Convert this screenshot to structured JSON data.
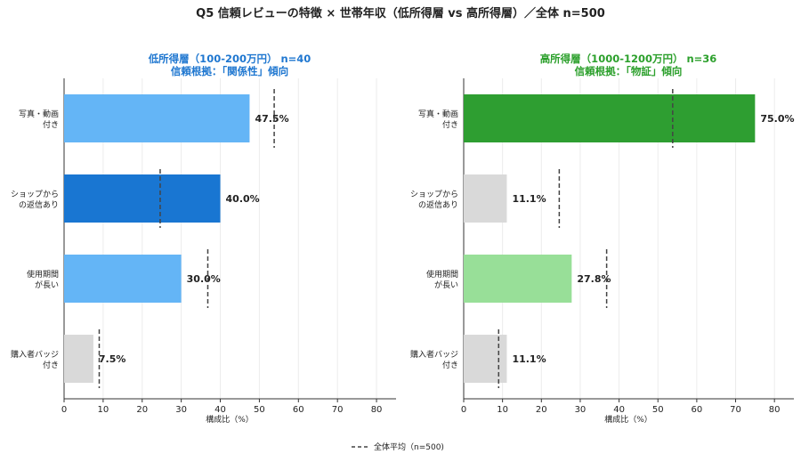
{
  "title": "Q5 信頼レビューの特徴 × 世帯年収（低所得層 vs 高所得層）／全体 n=500",
  "legend": {
    "label": "全体平均（n=500)"
  },
  "chart_data": [
    {
      "type": "bar",
      "orientation": "horizontal",
      "title": "低所得層（100-200万円） n=40",
      "subtitle": "信頼根拠：「関係性」傾向",
      "title_color": "#1f77d0",
      "xlabel": "構成比（%）",
      "xlim": [
        0,
        85
      ],
      "xticks": [
        0,
        10,
        20,
        30,
        40,
        50,
        60,
        70,
        80
      ],
      "grid": "vertical",
      "categories": [
        [
          "写真・動画",
          "付き"
        ],
        [
          "ショップから",
          "の返信あり"
        ],
        [
          "使用期間",
          "が長い"
        ],
        [
          "購入者バッジ",
          "付き"
        ]
      ],
      "values": [
        47.5,
        40.0,
        30.0,
        7.5
      ],
      "value_labels": [
        "47.5%",
        "40.0%",
        "30.0%",
        "7.5%"
      ],
      "bar_colors": [
        "#64b5f6",
        "#1976d2",
        "#64b5f6",
        "#d9d9d9"
      ],
      "overall_avg": [
        53.8,
        24.6,
        36.8,
        9.0
      ]
    },
    {
      "type": "bar",
      "orientation": "horizontal",
      "title": "高所得層（1000-1200万円） n=36",
      "subtitle": "信頼根拠：「物証」傾向",
      "title_color": "#2ca02c",
      "xlabel": "構成比（%）",
      "xlim": [
        0,
        85
      ],
      "xticks": [
        0,
        10,
        20,
        30,
        40,
        50,
        60,
        70,
        80
      ],
      "grid": "vertical",
      "categories": [
        [
          "写真・動画",
          "付き"
        ],
        [
          "ショップから",
          "の返信あり"
        ],
        [
          "使用期間",
          "が長い"
        ],
        [
          "購入者バッジ",
          "付き"
        ]
      ],
      "values": [
        75.0,
        11.1,
        27.8,
        11.1
      ],
      "value_labels": [
        "75.0%",
        "11.1%",
        "27.8%",
        "11.1%"
      ],
      "bar_colors": [
        "#2e9e31",
        "#d9d9d9",
        "#98df98",
        "#d9d9d9"
      ],
      "overall_avg": [
        53.8,
        24.6,
        36.8,
        9.0
      ]
    }
  ]
}
